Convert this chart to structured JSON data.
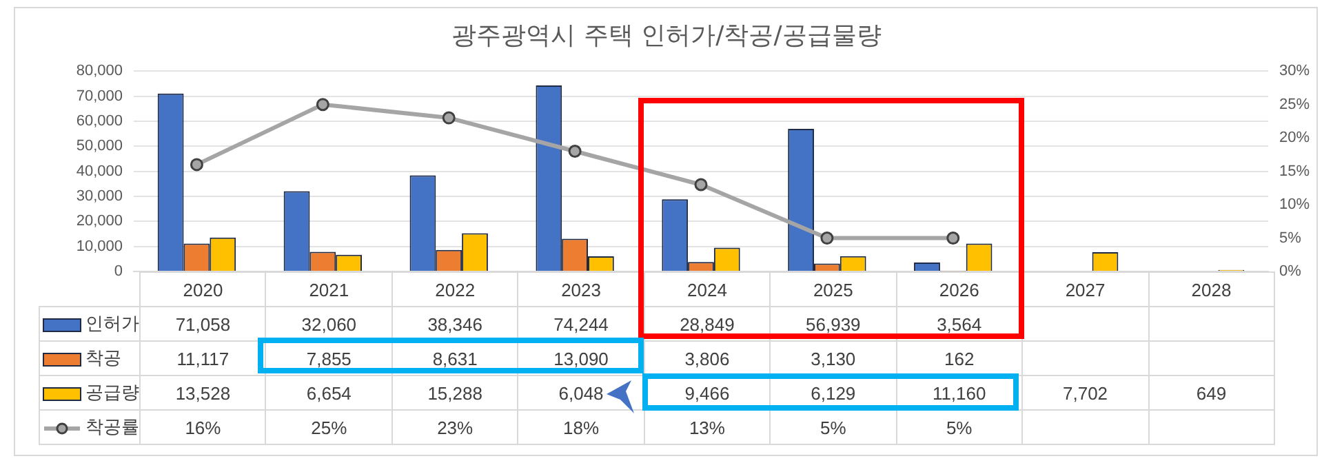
{
  "chart_data": {
    "type": "bar",
    "title": "광주광역시 주택 인허가/착공/공급물량",
    "categories": [
      "2020",
      "2021",
      "2022",
      "2023",
      "2024",
      "2025",
      "2026",
      "2027",
      "2028"
    ],
    "series": [
      {
        "name": "인허가",
        "color": "#4472c4",
        "values": [
          71058,
          32060,
          38346,
          74244,
          28849,
          56939,
          3564,
          null,
          null
        ],
        "value_labels": [
          "71,058",
          "32,060",
          "38,346",
          "74,244",
          "28,849",
          "56,939",
          "3,564",
          null,
          null
        ]
      },
      {
        "name": "착공",
        "color": "#ed7d31",
        "values": [
          11117,
          7855,
          8631,
          13090,
          3806,
          3130,
          162,
          null,
          null
        ],
        "value_labels": [
          "11,117",
          "7,855",
          "8,631",
          "13,090",
          "3,806",
          "3,130",
          "162",
          null,
          null
        ]
      },
      {
        "name": "공급량",
        "color": "#ffc000",
        "values": [
          13528,
          6654,
          15288,
          6048,
          9466,
          6129,
          11160,
          7702,
          649
        ],
        "value_labels": [
          "13,528",
          "6,654",
          "15,288",
          "6,048",
          "9,466",
          "6,129",
          "11,160",
          "7,702",
          "649"
        ]
      },
      {
        "name": "착공률",
        "type": "line",
        "axis": "y2",
        "color": "#a5a5a5",
        "marker": "circle",
        "values": [
          16,
          25,
          23,
          18,
          13,
          5,
          5,
          null,
          null
        ],
        "value_labels": [
          "16%",
          "25%",
          "23%",
          "18%",
          "13%",
          "5%",
          "5%",
          null,
          null
        ]
      }
    ],
    "ylim": [
      0,
      80000
    ],
    "yticks": [
      {
        "value": 0,
        "label": "0"
      },
      {
        "value": 10000,
        "label": "10,000"
      },
      {
        "value": 20000,
        "label": "20,000"
      },
      {
        "value": 30000,
        "label": "30,000"
      },
      {
        "value": 40000,
        "label": "40,000"
      },
      {
        "value": 50000,
        "label": "50,000"
      },
      {
        "value": 60000,
        "label": "60,000"
      },
      {
        "value": 70000,
        "label": "70,000"
      },
      {
        "value": 80000,
        "label": "80,000"
      }
    ],
    "y2lim": [
      0,
      30
    ],
    "y2ticks": [
      {
        "value": 0,
        "label": "0%"
      },
      {
        "value": 5,
        "label": "5%"
      },
      {
        "value": 10,
        "label": "10%"
      },
      {
        "value": 15,
        "label": "15%"
      },
      {
        "value": 20,
        "label": "20%"
      },
      {
        "value": 25,
        "label": "25%"
      },
      {
        "value": 30,
        "label": "30%"
      }
    ],
    "grid": "y",
    "legend": "bottom"
  }
}
